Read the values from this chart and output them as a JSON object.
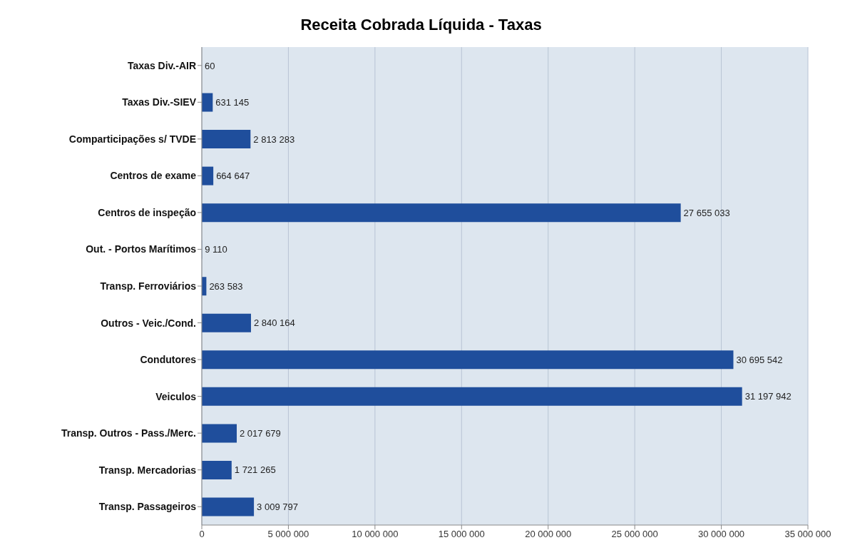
{
  "chart_data": {
    "type": "bar",
    "title": "Receita Cobrada Líquida - Taxas",
    "orientation": "horizontal",
    "categories": [
      "Taxas Div.-AIR",
      "Taxas Div.-SIEV",
      "Comparticipações s/ TVDE",
      "Centros de exame",
      "Centros de inspeção",
      "Out. - Portos Marítimos",
      "Transp. Ferroviários",
      "Outros - Veic./Cond.",
      "Condutores",
      "Veiculos",
      "Transp. Outros - Pass./Merc.",
      "Transp. Mercadorias",
      "Transp. Passageiros"
    ],
    "values": [
      60,
      631145,
      2813283,
      664647,
      27655033,
      9110,
      263583,
      2840164,
      30695542,
      31197942,
      2017679,
      1721265,
      3009797
    ],
    "value_labels": [
      "60",
      "631 145",
      "2 813 283",
      "664 647",
      "27 655 033",
      "9 110",
      "263 583",
      "2 840 164",
      "30 695 542",
      "31 197 942",
      "2 017 679",
      "1 721 265",
      "3 009 797"
    ],
    "color": "#1f4e9c",
    "xlim": [
      0,
      35000000
    ],
    "xticks": [
      0,
      {
        "value": 5000000,
        "label": "5 000 000"
      },
      {
        "value": 10000000,
        "label": "10 000 000"
      },
      {
        "value": 15000000,
        "label": "15 000 000"
      },
      {
        "value": 20000000,
        "label": "20 000 000"
      },
      {
        "value": 25000000,
        "label": "25 000 000"
      },
      {
        "value": 30000000,
        "label": "30 000 000"
      },
      {
        "value": 35000000,
        "label": "35 000 000"
      }
    ],
    "grid": "x",
    "legend": false
  }
}
